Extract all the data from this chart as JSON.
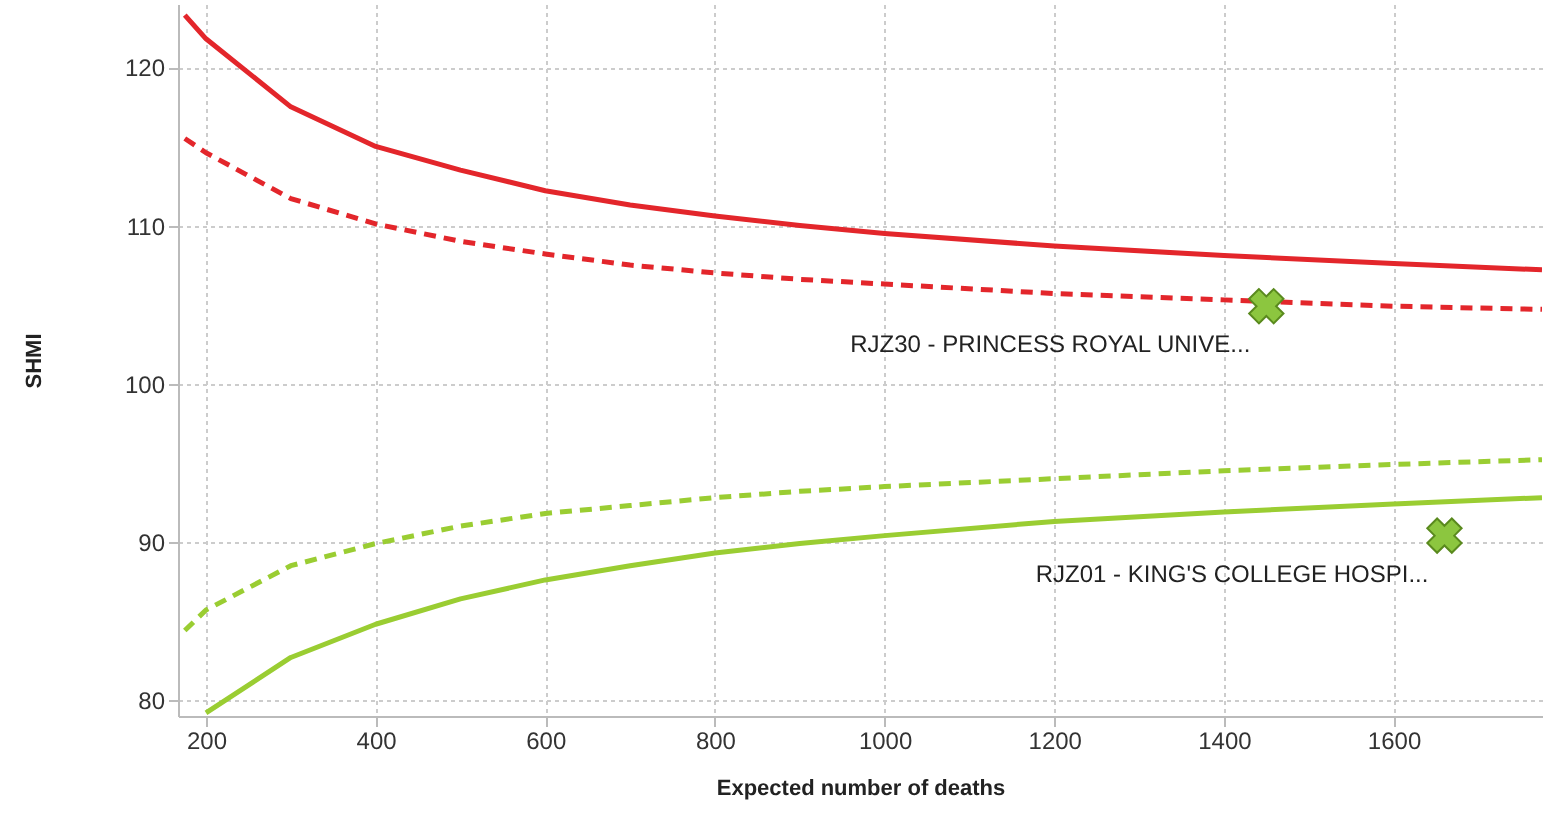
{
  "chart_data": {
    "type": "line",
    "xlabel": "Expected number of deaths",
    "ylabel": "SHMI",
    "xlim": [
      167,
      1775
    ],
    "ylim": [
      79,
      124
    ],
    "xticks": [
      200,
      400,
      600,
      800,
      1000,
      1200,
      1400,
      1600
    ],
    "yticks": [
      80,
      90,
      100,
      110,
      120
    ],
    "grid": true,
    "marker": "none",
    "series": [
      {
        "color": "#e3262b",
        "line_style": "solid",
        "x": [
          175,
          200,
          300,
          400,
          500,
          600,
          700,
          800,
          900,
          1000,
          1200,
          1400,
          1600,
          1775
        ],
        "values": [
          123.3,
          121.8,
          117.5,
          115,
          113.5,
          112.2,
          111.3,
          110.6,
          110.0,
          109.5,
          108.7,
          108.1,
          107.6,
          107.2
        ]
      },
      {
        "color": "#e3262b",
        "line_style": "dashed",
        "x": [
          175,
          200,
          300,
          400,
          500,
          600,
          700,
          800,
          900,
          1000,
          1200,
          1400,
          1600,
          1775
        ],
        "values": [
          115.5,
          114.6,
          111.7,
          110.1,
          109,
          108.2,
          107.5,
          107,
          106.6,
          106.3,
          105.7,
          105.3,
          104.9,
          104.7
        ]
      },
      {
        "color": "#9acd32",
        "line_style": "dashed",
        "x": [
          175,
          200,
          300,
          400,
          500,
          600,
          700,
          800,
          900,
          1000,
          1200,
          1400,
          1600,
          1775
        ],
        "values": [
          84.4,
          85.7,
          88.5,
          89.9,
          91,
          91.8,
          92.3,
          92.8,
          93.2,
          93.5,
          94.0,
          94.5,
          94.9,
          95.2
        ]
      },
      {
        "color": "#9acd32",
        "line_style": "solid",
        "x": [
          200,
          300,
          400,
          500,
          600,
          700,
          800,
          900,
          1000,
          1200,
          1400,
          1600,
          1775
        ],
        "values": [
          79.2,
          82.7,
          84.8,
          86.4,
          87.6,
          88.5,
          89.3,
          89.9,
          90.4,
          91.3,
          91.9,
          92.4,
          92.8
        ]
      },
      {
        "type": "scatter",
        "color": "#8cc63f",
        "marker": "cross",
        "x": [
          1450,
          1660
        ],
        "values": [
          104.9,
          90.4
        ]
      }
    ],
    "annotations": [
      {
        "text": "RJZ30 - PRINCESS ROYAL UNIVE...",
        "x": 1450,
        "y": 104.9
      },
      {
        "text": "RJZ01 - KING'S COLLEGE HOSPI...",
        "x": 1660,
        "y": 90.4
      }
    ]
  }
}
